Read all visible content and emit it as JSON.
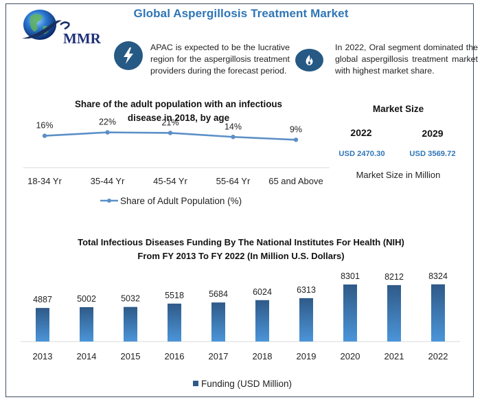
{
  "header": {
    "title": "Global Aspergillosis Treatment Market",
    "logo_text": "MMR"
  },
  "insights": [
    {
      "icon": "lightning-icon",
      "text": "APAC is expected to be the lucrative region for the aspergillosis treatment providers during the forecast period."
    },
    {
      "icon": "flame-icon",
      "text": "In 2022, Oral segment dominated the global aspergillosis treatment market with highest market share."
    }
  ],
  "market_size": {
    "title": "Market Size",
    "years": [
      "2022",
      "2029"
    ],
    "values": [
      "USD 2470.30",
      "USD 3569.72"
    ],
    "caption": "Market Size in Million"
  },
  "colors": {
    "accent": "#2e75b6",
    "icon_badge": "#265984",
    "line": "#5b8fc7",
    "bar_top": "#2f5a88",
    "bar_bottom": "#4b95d9",
    "frame": "#3e4c5c"
  },
  "chart_data": [
    {
      "type": "line",
      "title": "Share of the adult population with an infectious disease in 2018, by age",
      "title_lines": [
        "Share of the adult population with an infectious",
        "disease in 2018, by age"
      ],
      "categories": [
        "18-34 Yr",
        "35-44 Yr",
        "45-54 Yr",
        "55-64 Yr",
        "65 and Above"
      ],
      "series": [
        {
          "name": "Share of Adult Population (%)",
          "values": [
            16,
            22,
            21,
            14,
            9
          ],
          "labels": [
            "16%",
            "22%",
            "21%",
            "14%",
            "9%"
          ]
        }
      ],
      "xlabel": "",
      "ylabel": "",
      "ylim": [
        -40,
        30
      ],
      "grid": false,
      "legend": "bottom"
    },
    {
      "type": "bar",
      "title": "Total Infectious Diseases Funding By The National Institutes For Health (NIH) From FY 2013 To FY 2022 (In Million U.S. Dollars)",
      "title_lines": [
        "Total Infectious Diseases Funding By The National Institutes For Health (NIH)",
        "From FY 2013 To FY 2022 (In Million U.S. Dollars)"
      ],
      "categories": [
        "2013",
        "2014",
        "2015",
        "2016",
        "2017",
        "2018",
        "2019",
        "2020",
        "2021",
        "2022"
      ],
      "series": [
        {
          "name": "Funding (USD Million)",
          "values": [
            4887,
            5002,
            5032,
            5518,
            5684,
            6024,
            6313,
            8301,
            8212,
            8324
          ]
        }
      ],
      "xlabel": "",
      "ylabel": "",
      "ylim": [
        0,
        10000
      ],
      "grid": false,
      "legend": "bottom"
    }
  ]
}
